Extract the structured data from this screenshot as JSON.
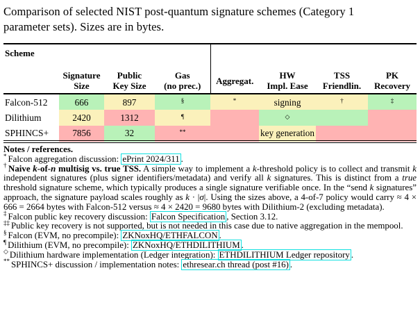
{
  "title_lines": [
    "Comparison of selected NIST post-quantum signature schemes (Category 1",
    "parameter sets). Sizes are in bytes."
  ],
  "colors": {
    "green": "#b9f2b9",
    "yellow": "#fbf1bb",
    "red": "#ffb3b3",
    "link_border": "#0fe0e0"
  },
  "table": {
    "headers": [
      {
        "line1": "Scheme",
        "line2": ""
      },
      {
        "line1": "Signature",
        "line2": "Size"
      },
      {
        "line1": "Public",
        "line2": "Key Size"
      },
      {
        "line1": "Gas",
        "line2": "(no prec.)"
      },
      {
        "line1": "Aggregat.",
        "line2": ""
      },
      {
        "line1": "HW",
        "line2": "Impl. Ease"
      },
      {
        "line1": "TSS",
        "line2": "Friendlin."
      },
      {
        "line1": "PK",
        "line2": "Recovery"
      }
    ],
    "rows": [
      {
        "scheme": "Falcon-512",
        "cells": [
          {
            "text": "666",
            "color": "green"
          },
          {
            "text": "897",
            "color": "yellow"
          },
          {
            "text": "§",
            "color": "green",
            "sup": true
          },
          {
            "text": "*",
            "color": "yellow",
            "sup": true
          },
          {
            "text": "signing",
            "color": "yellow"
          },
          {
            "text": "†",
            "color": "yellow",
            "sup": true
          },
          {
            "text": "‡",
            "color": "green",
            "sup": true
          }
        ]
      },
      {
        "scheme": "Dilithium",
        "cells": [
          {
            "text": "2420",
            "color": "yellow"
          },
          {
            "text": "1312",
            "color": "red"
          },
          {
            "text": "¶",
            "color": "yellow",
            "sup": true
          },
          {
            "text": "",
            "color": "red"
          },
          {
            "text": "◇",
            "color": "green",
            "sup": true
          },
          {
            "text": "",
            "color": "green"
          },
          {
            "text": "",
            "color": "red"
          }
        ]
      },
      {
        "scheme": "SPHINCS+",
        "cells": [
          {
            "text": "7856",
            "color": "red"
          },
          {
            "text": "32",
            "color": "green"
          },
          {
            "text": "**",
            "color": "red",
            "sup": true
          },
          {
            "text": "",
            "color": "red"
          },
          {
            "text": "key generation",
            "color": "yellow"
          },
          {
            "text": "",
            "color": "red"
          },
          {
            "text": "",
            "color": "red"
          }
        ]
      }
    ]
  },
  "notes": {
    "title": "Notes / references.",
    "items": [
      {
        "marker": "*",
        "segments": [
          {
            "t": "Falcon aggregation discussion: "
          },
          {
            "link": "ePrint 2024/311"
          },
          {
            "t": "."
          }
        ]
      },
      {
        "marker": "†",
        "segments": [
          {
            "b": "Naive "
          },
          {
            "bi": "k"
          },
          {
            "b": "-of-"
          },
          {
            "bi": "n"
          },
          {
            "b": " multisig vs. true TSS."
          },
          {
            "t": " A simple way to implement a "
          },
          {
            "i": "k"
          },
          {
            "t": "-threshold policy is to collect and transmit "
          },
          {
            "i": "k"
          },
          {
            "t": " independent signatures (plus signer identifiers/metadata) and verify all "
          },
          {
            "i": "k"
          },
          {
            "t": " signatures. This is distinct from a "
          },
          {
            "i": "true"
          },
          {
            "t": " threshold signature scheme, which typically produces a single signature verifiable once. In the “send "
          },
          {
            "i": "k"
          },
          {
            "t": " signatures” approach, the signature payload scales roughly as "
          },
          {
            "i": "k"
          },
          {
            "t": " · |"
          },
          {
            "i": "σ"
          },
          {
            "t": "|. Using the sizes above, a 4-of-7 policy would carry ≈ 4 × 666 = 2664 bytes with Falcon-512 versus ≈ 4 × 2420 = 9680 bytes with Dilithium-2 (excluding metadata)."
          }
        ]
      },
      {
        "marker": "‡",
        "segments": [
          {
            "t": "Falcon public key recovery discussion: "
          },
          {
            "link": "Falcon Specification"
          },
          {
            "t": ", Section 3.12."
          }
        ]
      },
      {
        "marker": "‡‡",
        "segments": [
          {
            "t": "Public key recovery is not supported, but is not needed in this case due to native aggregation in the mempool."
          }
        ]
      },
      {
        "marker": "§",
        "segments": [
          {
            "t": "Falcon (EVM, no precompile): "
          },
          {
            "link": "ZKNoxHQ/ETHFALCON"
          },
          {
            "t": "."
          }
        ]
      },
      {
        "marker": "¶",
        "segments": [
          {
            "t": "Dilithium (EVM, no precompile): "
          },
          {
            "link": "ZKNoxHQ/ETHDILITHIUM"
          },
          {
            "t": "."
          }
        ]
      },
      {
        "marker": "◇",
        "segments": [
          {
            "t": "Dilithium hardware implementation (Ledger integration): "
          },
          {
            "link": "ETHDILITHIUM Ledger repository"
          },
          {
            "t": "."
          }
        ]
      },
      {
        "marker": "**",
        "segments": [
          {
            "t": "SPHINCS+ discussion / implementation notes: "
          },
          {
            "link": "ethresear.ch thread (post #16)"
          },
          {
            "t": "."
          }
        ]
      }
    ]
  }
}
